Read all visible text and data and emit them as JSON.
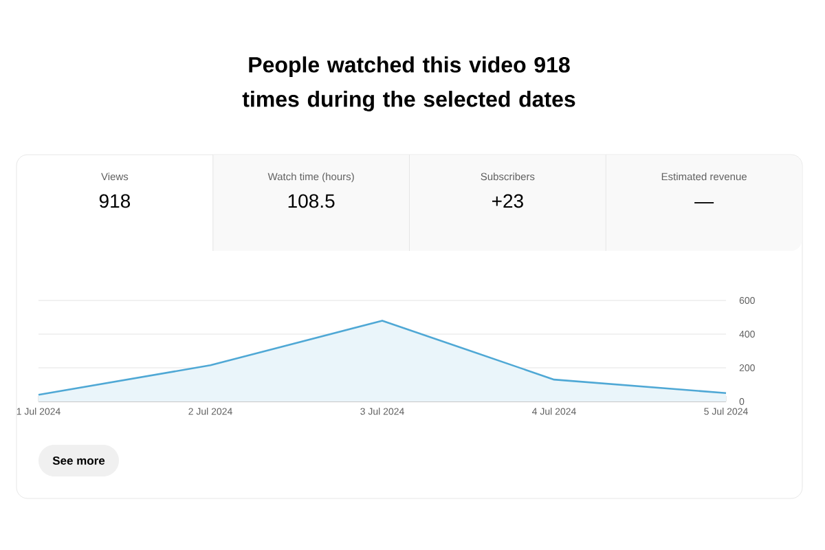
{
  "chart_data": {
    "type": "area",
    "title": "People watched this video 918 times during the selected dates",
    "categories": [
      "1 Jul 2024",
      "2 Jul 2024",
      "3 Jul 2024",
      "4 Jul 2024",
      "5 Jul 2024"
    ],
    "series": [
      {
        "color": "#4fa8d5",
        "values": [
          40,
          215,
          480,
          130,
          50
        ]
      }
    ],
    "ylim": [
      0,
      600
    ],
    "yticks": [
      0,
      200,
      400,
      600
    ],
    "grid": "y",
    "annotations": [
      "Views",
      "918",
      "Watch time (hours)",
      "108.5",
      "Subscribers",
      "+23",
      "Estimated revenue",
      "—",
      "See more"
    ]
  }
}
